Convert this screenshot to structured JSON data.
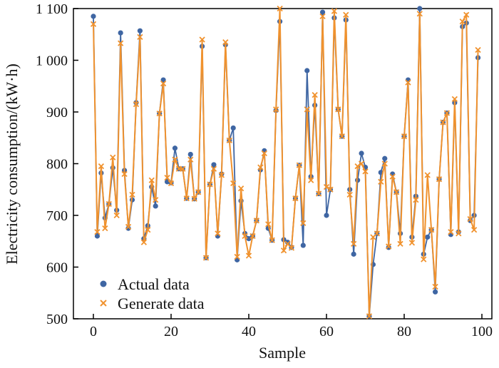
{
  "chart_data": {
    "type": "line",
    "title": "",
    "xlabel": "Sample",
    "ylabel": "Electricity consumption/(kW·h)",
    "xlim": [
      -5,
      103
    ],
    "ylim": [
      500,
      1100
    ],
    "xticks": [
      0,
      20,
      40,
      60,
      80,
      100
    ],
    "xtick_labels": [
      "0",
      "20",
      "40",
      "60",
      "80",
      "100"
    ],
    "yticks": [
      500,
      600,
      700,
      800,
      900,
      1000,
      1100
    ],
    "ytick_labels": [
      "500",
      "600",
      "700",
      "800",
      "900",
      "1 000",
      "1 100"
    ],
    "grid": false,
    "legend_position": "bottom-left",
    "x": [
      0,
      1,
      2,
      3,
      4,
      5,
      6,
      7,
      8,
      9,
      10,
      11,
      12,
      13,
      14,
      15,
      16,
      17,
      18,
      19,
      20,
      21,
      22,
      23,
      24,
      25,
      26,
      27,
      28,
      29,
      30,
      31,
      32,
      33,
      34,
      35,
      36,
      37,
      38,
      39,
      40,
      41,
      42,
      43,
      44,
      45,
      46,
      47,
      48,
      49,
      50,
      51,
      52,
      53,
      54,
      55,
      56,
      57,
      58,
      59,
      60,
      61,
      62,
      63,
      64,
      65,
      66,
      67,
      68,
      69,
      70,
      71,
      72,
      73,
      74,
      75,
      76,
      77,
      78,
      79,
      80,
      81,
      82,
      83,
      84,
      85,
      86,
      87,
      88,
      89,
      90,
      91,
      92,
      93,
      94,
      95,
      96,
      97,
      98,
      99
    ],
    "series": [
      {
        "name": "Actual data",
        "marker": "circle",
        "color": "#3f66a3",
        "values": [
          1085,
          660,
          782,
          695,
          722,
          792,
          710,
          1053,
          787,
          675,
          730,
          918,
          1057,
          655,
          680,
          755,
          718,
          897,
          962,
          765,
          763,
          830,
          790,
          790,
          733,
          818,
          732,
          745,
          1027,
          618,
          760,
          798,
          660,
          780,
          1030,
          845,
          869,
          614,
          728,
          665,
          655,
          660,
          690,
          788,
          825,
          675,
          652,
          903,
          1075,
          653,
          648,
          638,
          733,
          797,
          642,
          980,
          775,
          913,
          742,
          1093,
          700,
          750,
          1082,
          905,
          853,
          1078,
          750,
          625,
          768,
          820,
          793,
          505,
          605,
          665,
          783,
          810,
          638,
          780,
          745,
          665,
          853,
          962,
          658,
          737,
          1100,
          625,
          658,
          672,
          552,
          770,
          880,
          898,
          663,
          918,
          668,
          1065,
          1072,
          690,
          700,
          1005
        ]
      },
      {
        "name": "Generate data",
        "marker": "x",
        "color": "#f0922e",
        "values": [
          1070,
          668,
          795,
          675,
          722,
          812,
          700,
          1033,
          780,
          678,
          740,
          915,
          1045,
          648,
          672,
          768,
          730,
          897,
          955,
          773,
          762,
          808,
          790,
          790,
          733,
          808,
          732,
          745,
          1040,
          618,
          760,
          790,
          665,
          778,
          1035,
          845,
          762,
          620,
          752,
          660,
          622,
          660,
          690,
          793,
          820,
          683,
          652,
          905,
          1100,
          632,
          645,
          637,
          733,
          797,
          685,
          905,
          768,
          933,
          742,
          1085,
          755,
          750,
          1095,
          905,
          853,
          1088,
          740,
          645,
          795,
          800,
          785,
          505,
          658,
          665,
          765,
          800,
          640,
          775,
          745,
          645,
          853,
          957,
          647,
          730,
          1090,
          615,
          778,
          672,
          562,
          770,
          880,
          898,
          668,
          925,
          665,
          1075,
          1088,
          693,
          672,
          1020
        ]
      }
    ]
  }
}
